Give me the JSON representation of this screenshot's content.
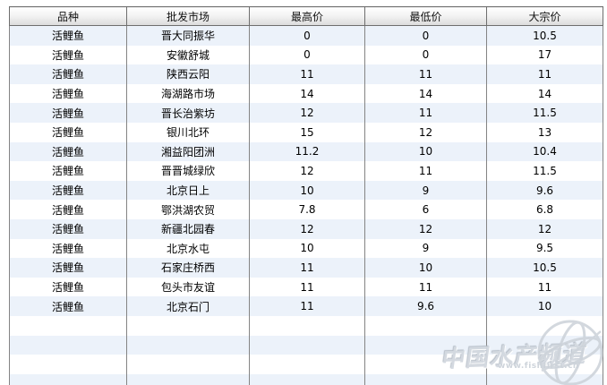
{
  "table": {
    "columns": [
      "品种",
      "批发市场",
      "最高价",
      "最低价",
      "大宗价"
    ],
    "rows": [
      [
        "活鲤鱼",
        "晋大同振华",
        "0",
        "0",
        "10.5"
      ],
      [
        "活鲤鱼",
        "安徽舒城",
        "0",
        "0",
        "17"
      ],
      [
        "活鲤鱼",
        "陕西云阳",
        "11",
        "11",
        "11"
      ],
      [
        "活鲤鱼",
        "海湖路市场",
        "14",
        "14",
        "14"
      ],
      [
        "活鲤鱼",
        "晋长治紫坊",
        "12",
        "11",
        "11.5"
      ],
      [
        "活鲤鱼",
        "银川北环",
        "15",
        "12",
        "13"
      ],
      [
        "活鲤鱼",
        "湘益阳团洲",
        "11.2",
        "10",
        "10.4"
      ],
      [
        "活鲤鱼",
        "晋晋城绿欣",
        "12",
        "11",
        "11.5"
      ],
      [
        "活鲤鱼",
        "北京日上",
        "10",
        "9",
        "9.6"
      ],
      [
        "活鲤鱼",
        "鄂洪湖农贸",
        "7.8",
        "6",
        "6.8"
      ],
      [
        "活鲤鱼",
        "新疆北园春",
        "12",
        "12",
        "12"
      ],
      [
        "活鲤鱼",
        "北京水屯",
        "10",
        "9",
        "9.5"
      ],
      [
        "活鲤鱼",
        "石家庄桥西",
        "11",
        "10",
        "10.5"
      ],
      [
        "活鲤鱼",
        "包头市友谊",
        "11",
        "11",
        "11"
      ],
      [
        "活鲤鱼",
        "北京石门",
        "11",
        "9.6",
        "10"
      ]
    ],
    "empty_row_count": 4
  },
  "watermark": {
    "title": "中国水产频道",
    "url": "www.fishfirst.cn"
  },
  "colors": {
    "stripe_blue": "#ecf2fa",
    "grid_gray": "#848484",
    "header_border": "#6e6e6e",
    "watermark_gray": "#d2d8df"
  }
}
